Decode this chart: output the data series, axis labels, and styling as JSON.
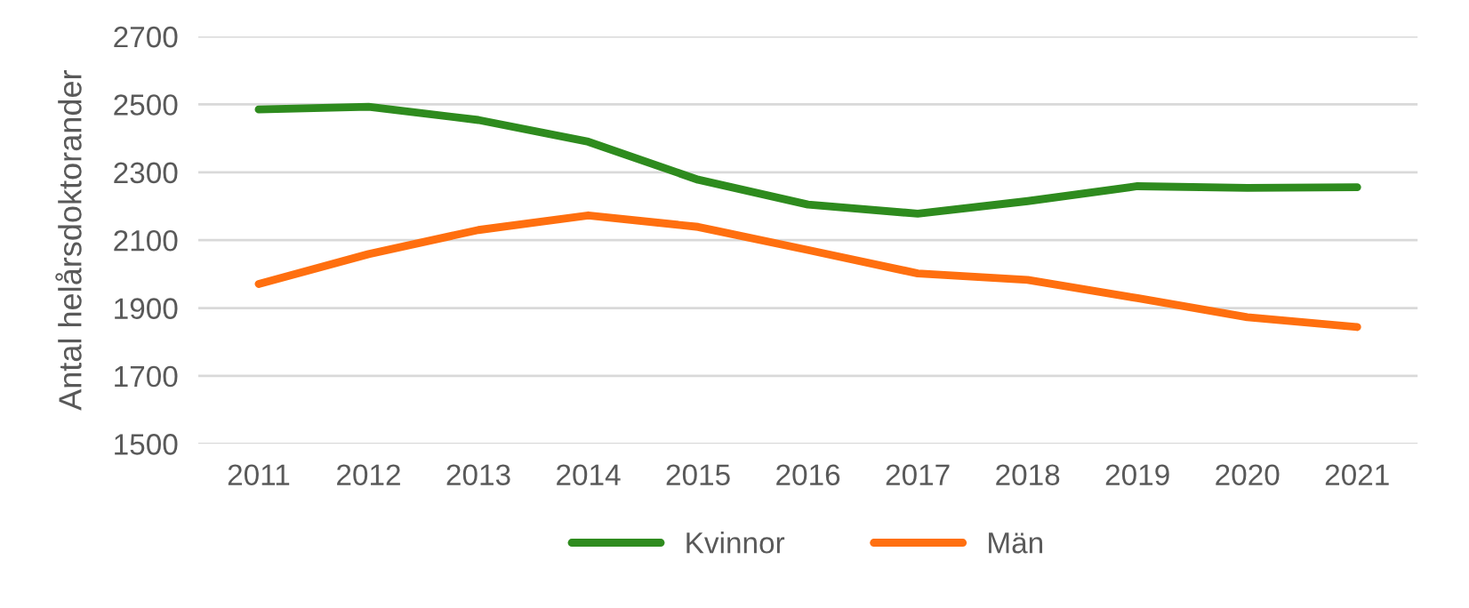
{
  "chart_data": {
    "type": "line",
    "ylabel": "Antal helårsdoktorander",
    "categories": [
      "2011",
      "2012",
      "2013",
      "2014",
      "2015",
      "2016",
      "2017",
      "2018",
      "2019",
      "2020",
      "2021"
    ],
    "series": [
      {
        "name": "Kvinnor",
        "color": "#2e8b1e",
        "values": [
          2485,
          2493,
          2454,
          2390,
          2278,
          2205,
          2178,
          2215,
          2259,
          2254,
          2256
        ]
      },
      {
        "name": "Män",
        "color": "#ff6f0f",
        "values": [
          1971,
          2059,
          2130,
          2173,
          2139,
          2071,
          2002,
          1983,
          1929,
          1873,
          1844
        ]
      }
    ],
    "ylim": [
      1500,
      2700
    ],
    "yticks": [
      1500,
      1700,
      1900,
      2100,
      2300,
      2500,
      2700
    ],
    "grid": "y",
    "legend": "bottom",
    "marker": "none",
    "line_style": "solid"
  }
}
